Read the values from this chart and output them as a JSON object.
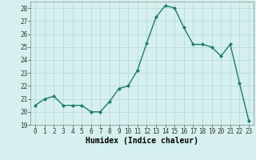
{
  "x": [
    0,
    1,
    2,
    3,
    4,
    5,
    6,
    7,
    8,
    9,
    10,
    11,
    12,
    13,
    14,
    15,
    16,
    17,
    18,
    19,
    20,
    21,
    22,
    23
  ],
  "y": [
    20.5,
    21.0,
    21.2,
    20.5,
    20.5,
    20.5,
    20.0,
    20.0,
    20.8,
    21.8,
    22.0,
    23.2,
    25.3,
    27.3,
    28.2,
    28.0,
    26.5,
    25.2,
    25.2,
    25.0,
    24.3,
    25.2,
    22.2,
    19.3
  ],
  "line_color": "#1f7a6e",
  "marker": "D",
  "markersize": 2.0,
  "linewidth": 1.0,
  "bg_color": "#d5f0ee",
  "grid_color": "#b8dbd8",
  "xlabel": "Humidex (Indice chaleur)",
  "xlim": [
    -0.5,
    23.5
  ],
  "ylim": [
    19,
    28.5
  ],
  "yticks": [
    19,
    20,
    21,
    22,
    23,
    24,
    25,
    26,
    27,
    28
  ],
  "xticks": [
    0,
    1,
    2,
    3,
    4,
    5,
    6,
    7,
    8,
    9,
    10,
    11,
    12,
    13,
    14,
    15,
    16,
    17,
    18,
    19,
    20,
    21,
    22,
    23
  ],
  "tick_fontsize": 5.5,
  "xlabel_fontsize": 7.0
}
